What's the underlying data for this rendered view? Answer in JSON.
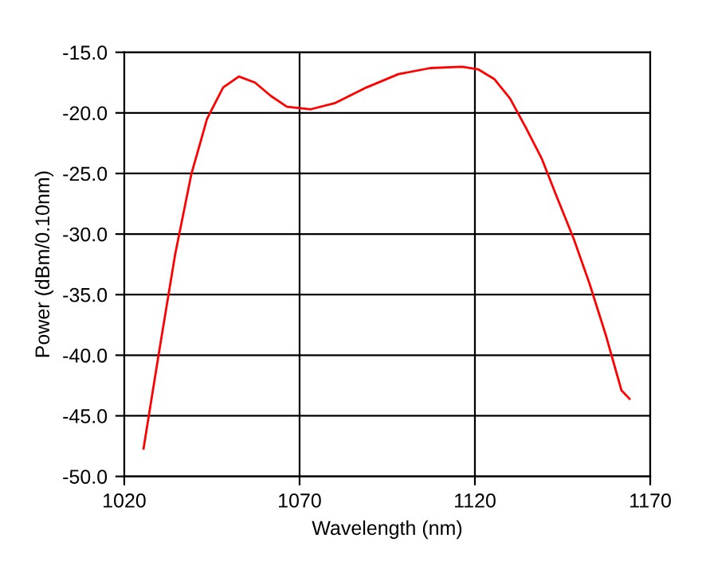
{
  "chart_data": {
    "type": "line",
    "xlabel": "Wavelength (nm)",
    "ylabel": "Power (dBm/0.10nm)",
    "x": [
      1025.5,
      1030,
      1034.5,
      1039.1,
      1043.6,
      1048.2,
      1052.7,
      1057.3,
      1061.8,
      1066.4,
      1073.2,
      1080,
      1089.1,
      1098.2,
      1107.3,
      1116.4,
      1120.9,
      1125.5,
      1130,
      1134.5,
      1139.1,
      1143.6,
      1148.2,
      1152.7,
      1157.3,
      1161.8,
      1164.1
    ],
    "series": [
      {
        "color": "#ff0000",
        "values": [
          -47.7,
          -39.6,
          -31.7,
          -25.1,
          -20.5,
          -17.9,
          -17.0,
          -17.5,
          -18.6,
          -19.5,
          -19.7,
          -19.2,
          -17.9,
          -16.8,
          -16.3,
          -16.2,
          -16.4,
          -17.2,
          -18.8,
          -21.2,
          -23.8,
          -27.1,
          -30.4,
          -34.1,
          -38.3,
          -42.9,
          -43.6
        ]
      }
    ],
    "xlim": [
      1020,
      1170
    ],
    "xticks": [
      1020,
      1070,
      1120,
      1170
    ],
    "ylim": [
      -50,
      -15
    ],
    "yticks": [
      {
        "value": -50,
        "label": "-50.0"
      },
      {
        "value": -45,
        "label": "-45.0"
      },
      {
        "value": -40,
        "label": "-40.0"
      },
      {
        "value": -35,
        "label": "-35.0"
      },
      {
        "value": -30,
        "label": "-30.0"
      },
      {
        "value": -25,
        "label": "-25.0"
      },
      {
        "value": -20,
        "label": "-20.0"
      },
      {
        "value": -15,
        "label": "-15.0"
      }
    ],
    "grid": true,
    "marker": "none",
    "line_style": "solid"
  }
}
